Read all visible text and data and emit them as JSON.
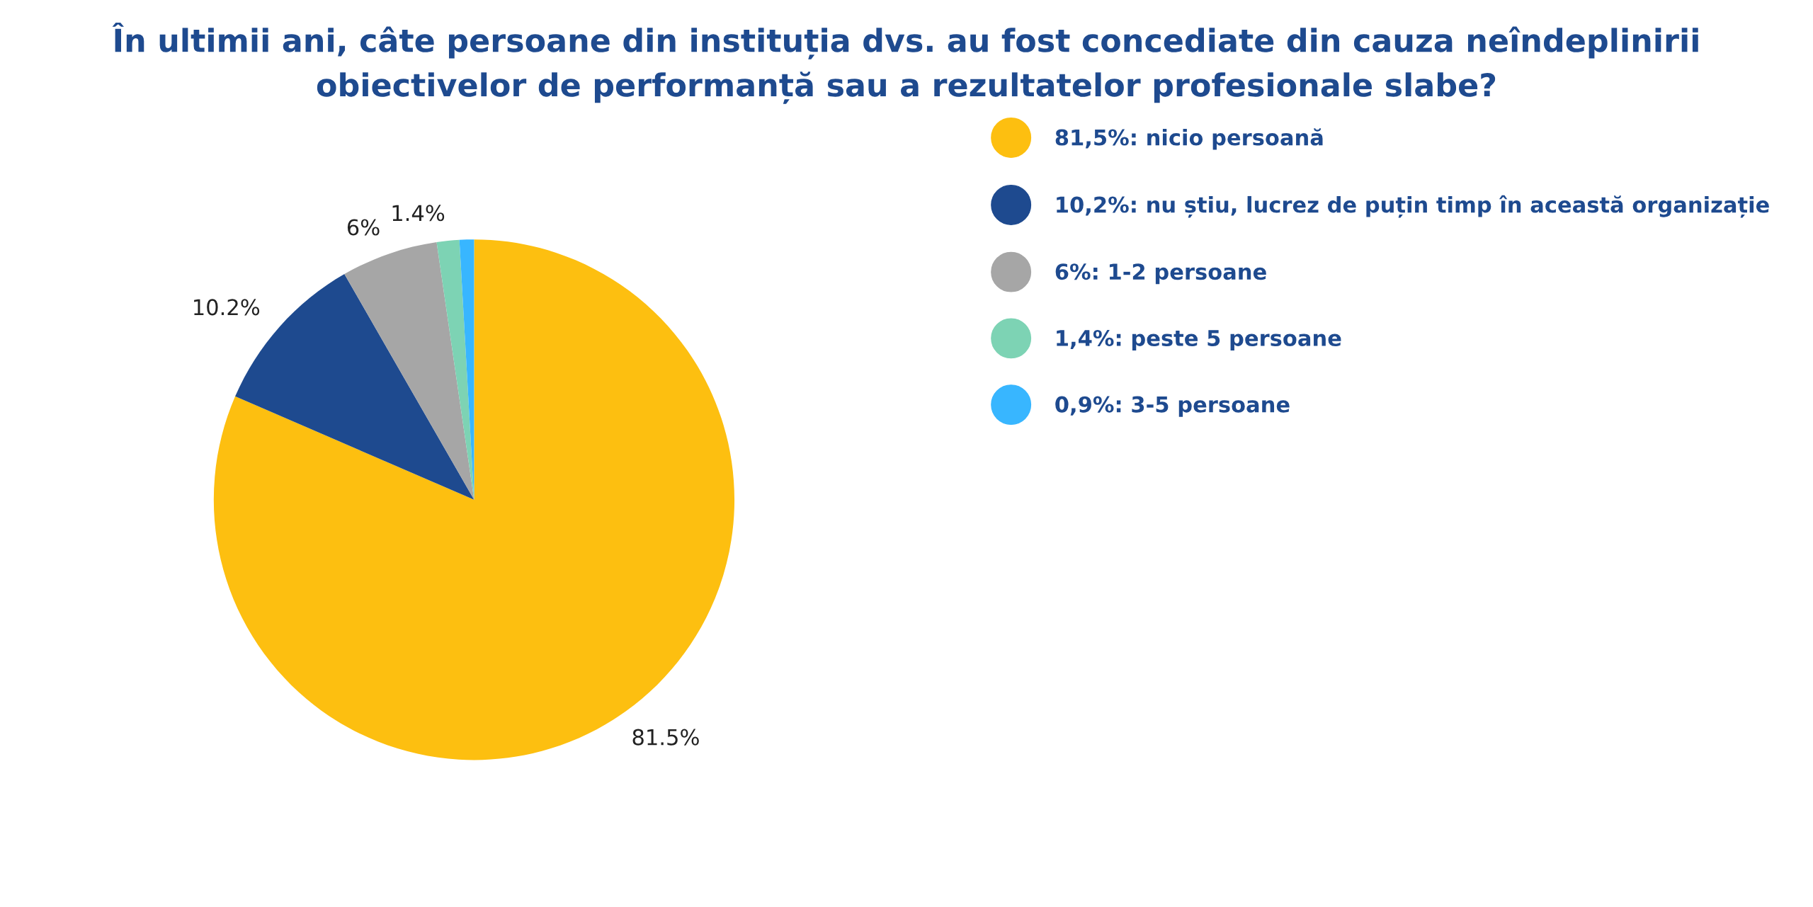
{
  "chart_data": {
    "type": "pie",
    "title": "În ultimii ani, câte persoane din instituția dvs. au fost concediate din cauza neîndeplinirii\nobiectivelor de performanță sau a rezultatelor profesionale slabe?",
    "categories": [
      "81,5%: nicio persoană",
      "10,2%: nu știu, lucrez de puțin timp în această organizație",
      "6%: 1-2 persoane",
      "1,4%: peste 5 persoane",
      "0,9%: 3-5 persoane"
    ],
    "values": [
      81.5,
      10.2,
      6,
      1.4,
      0.9
    ],
    "value_labels": [
      "81.5%",
      "10.2%",
      "6%",
      "1.4%",
      null
    ],
    "colors": [
      "#fdbf10",
      "#1e4a8f",
      "#a6a6a6",
      "#7dd3b4",
      "#38b6ff"
    ],
    "legend": "right"
  }
}
